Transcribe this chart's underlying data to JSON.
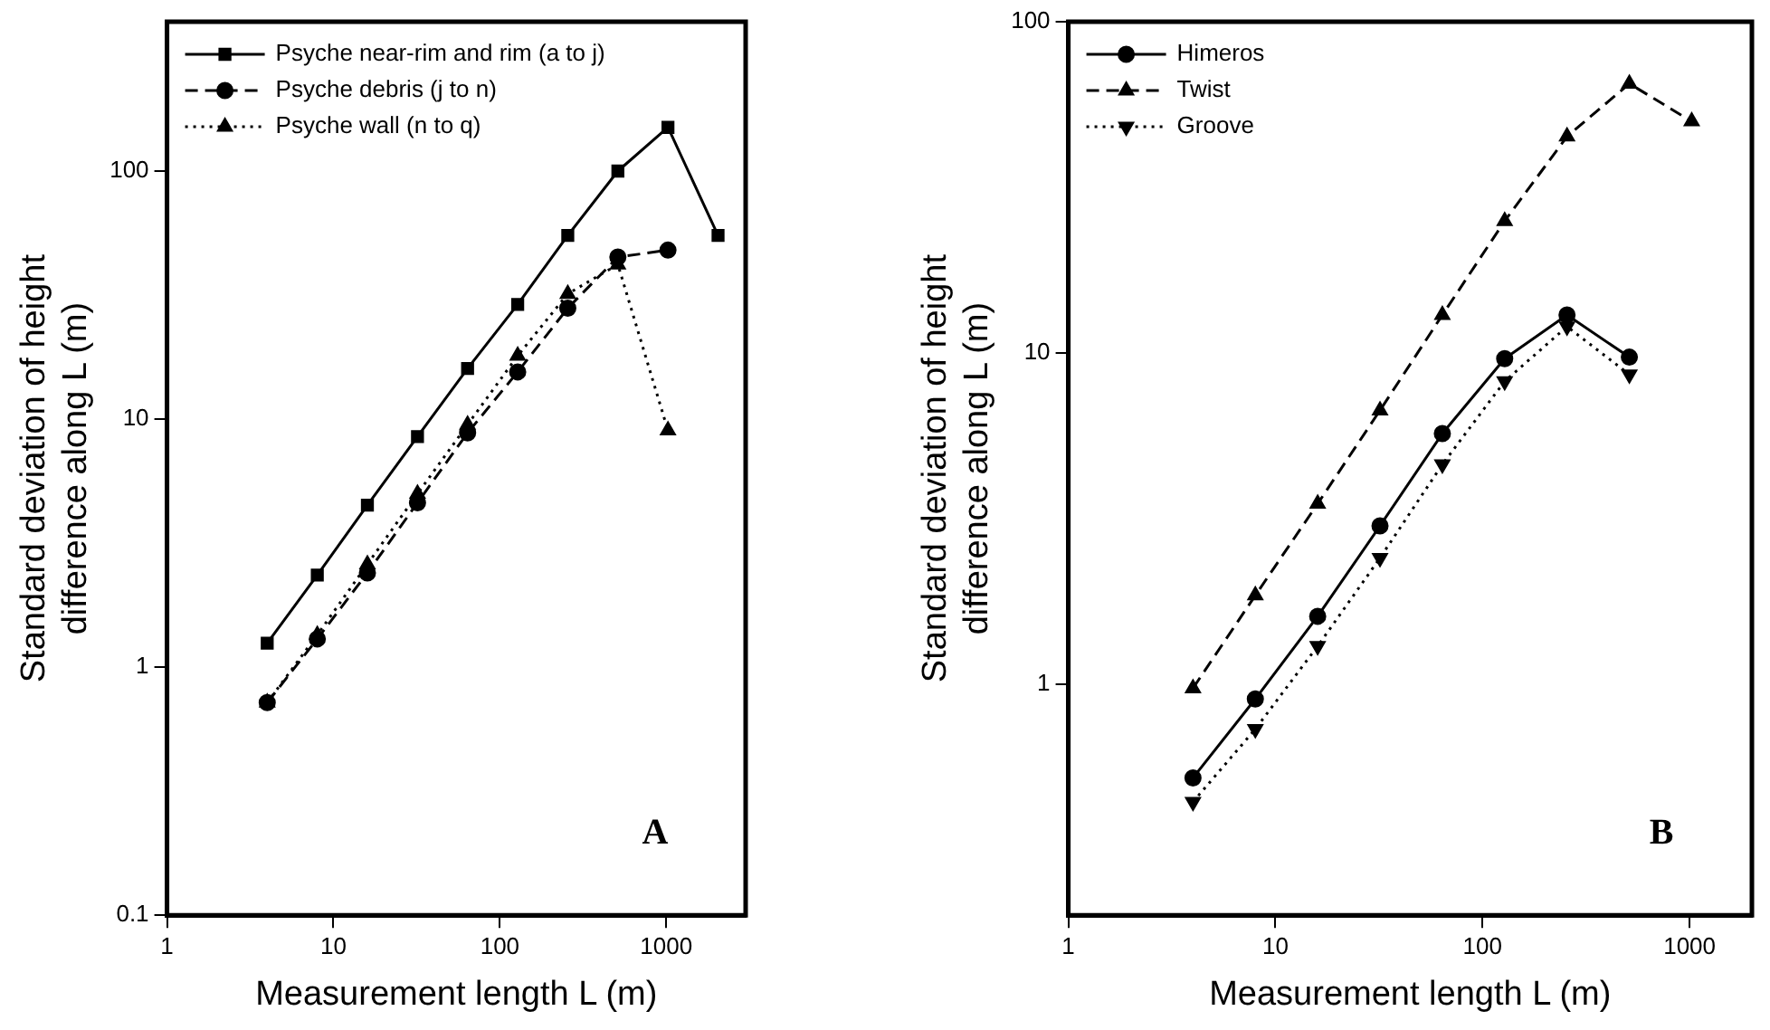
{
  "chart_data": [
    {
      "type": "line",
      "xlabel": "Measurement length L (m)",
      "ylabel": "Standard deviation of height difference along L (m)",
      "log": "xy",
      "xlim": [
        1,
        3000
      ],
      "xticks": [
        1,
        10,
        100,
        1000
      ],
      "ylim": [
        0.1,
        400
      ],
      "yticks": [
        0.1,
        1,
        10,
        100
      ],
      "grid": false,
      "legend": "top left",
      "annotations": [
        "A"
      ],
      "x": [
        4,
        8,
        16,
        32,
        64,
        128,
        256,
        512,
        1024,
        2048
      ],
      "series": [
        {
          "name": "Psyche near-rim and rim (a to j)",
          "color": "#000000",
          "marker": "square",
          "line_style": "solid",
          "values": [
            1.25,
            2.35,
            4.5,
            8.5,
            16,
            29,
            55,
            100,
            150,
            55
          ]
        },
        {
          "name": "Psyche debris (j to n)",
          "color": "#000000",
          "marker": "circle",
          "line_style": "dashed",
          "values": [
            0.72,
            1.3,
            2.4,
            4.6,
            8.8,
            15.5,
            28,
            45,
            48,
            null
          ]
        },
        {
          "name": "Psyche wall (n to q)",
          "color": "#000000",
          "marker": "triangle",
          "line_style": "dotted",
          "values": [
            0.72,
            1.35,
            2.6,
            5,
            9.5,
            18,
            32,
            42,
            9,
            null
          ]
        }
      ]
    },
    {
      "type": "line",
      "xlabel": "Measurement length L (m)",
      "ylabel": "Standard deviation of height difference along L (m)",
      "log": "xy",
      "xlim": [
        1,
        2000
      ],
      "xticks": [
        1,
        10,
        100,
        1000
      ],
      "ylim": [
        0.2,
        100
      ],
      "yticks": [
        1,
        10,
        100
      ],
      "grid": false,
      "legend": "top left",
      "annotations": [
        "B"
      ],
      "x": [
        4,
        8,
        16,
        32,
        64,
        128,
        256,
        512,
        1024
      ],
      "series": [
        {
          "name": "Himeros",
          "color": "#000000",
          "marker": "circle",
          "line_style": "solid",
          "values": [
            0.52,
            0.9,
            1.6,
            3.0,
            5.7,
            9.6,
            13,
            9.7,
            null
          ]
        },
        {
          "name": "Twist",
          "color": "#000000",
          "marker": "triangle",
          "line_style": "dashed",
          "values": [
            0.97,
            1.85,
            3.5,
            6.7,
            13,
            25,
            45,
            65,
            50
          ]
        },
        {
          "name": "Groove",
          "color": "#000000",
          "marker": "triangle-down",
          "line_style": "dotted",
          "values": [
            0.44,
            0.73,
            1.3,
            2.4,
            4.6,
            8.2,
            12,
            8.6,
            null
          ]
        }
      ]
    }
  ]
}
